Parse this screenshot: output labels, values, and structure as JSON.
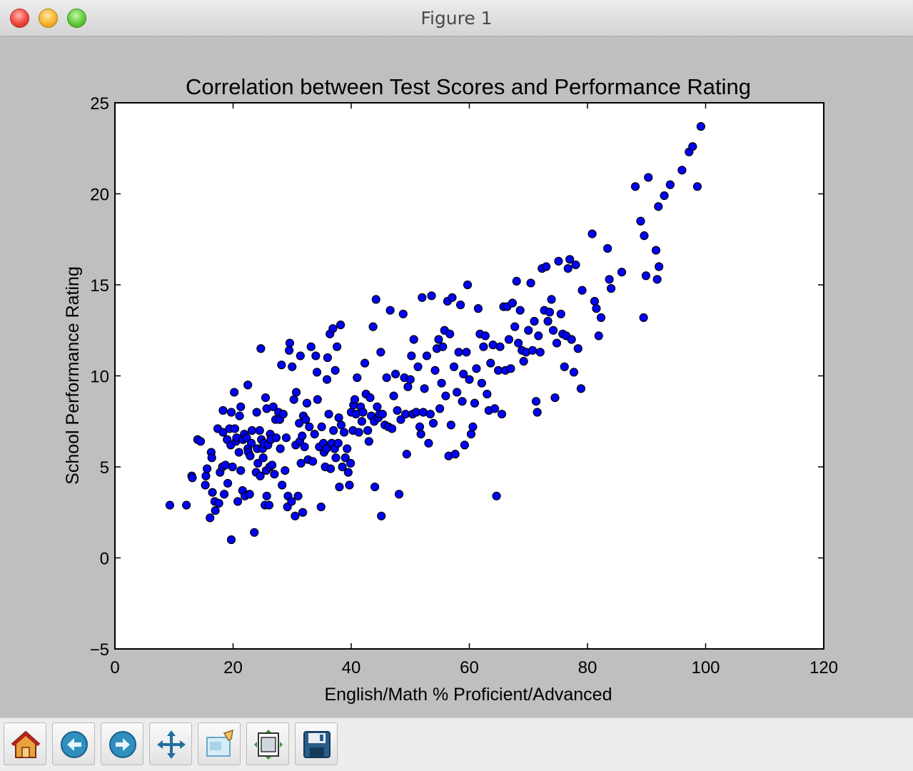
{
  "window": {
    "title": "Figure 1"
  },
  "toolbar": {
    "buttons": [
      {
        "name": "home-icon"
      },
      {
        "name": "back-arrow-icon"
      },
      {
        "name": "forward-arrow-icon"
      },
      {
        "name": "pan-move-icon"
      },
      {
        "name": "zoom-rect-icon"
      },
      {
        "name": "subplots-config-icon"
      },
      {
        "name": "save-floppy-icon"
      }
    ]
  },
  "chart_data": {
    "type": "scatter",
    "title": "Correlation between Test Scores and Performance Rating",
    "xlabel": "English/Math % Proficient/Advanced",
    "ylabel": "School Performance Rating",
    "xlim": [
      0,
      120
    ],
    "ylim": [
      -5,
      25
    ],
    "xticks": [
      "0",
      "20",
      "40",
      "60",
      "80",
      "100",
      "120"
    ],
    "yticks": [
      "−5",
      "0",
      "5",
      "10",
      "15",
      "20",
      "25"
    ],
    "grid": false,
    "marker_color": "#0000ff",
    "marker_edge": "#000000",
    "points": [
      [
        9.3,
        2.9
      ],
      [
        12.1,
        2.9
      ],
      [
        13.0,
        4.5
      ],
      [
        13.1,
        4.4
      ],
      [
        14.0,
        6.5
      ],
      [
        14.5,
        6.4
      ],
      [
        15.3,
        4.0
      ],
      [
        15.4,
        4.5
      ],
      [
        15.6,
        4.9
      ],
      [
        16.1,
        2.2
      ],
      [
        16.3,
        5.8
      ],
      [
        16.5,
        3.6
      ],
      [
        16.4,
        5.5
      ],
      [
        16.9,
        3.1
      ],
      [
        17.0,
        2.6
      ],
      [
        17.4,
        7.1
      ],
      [
        17.6,
        3.0
      ],
      [
        17.8,
        4.7
      ],
      [
        18.2,
        5.0
      ],
      [
        18.3,
        6.9
      ],
      [
        18.3,
        8.1
      ],
      [
        18.5,
        3.5
      ],
      [
        18.7,
        5.1
      ],
      [
        19.0,
        6.5
      ],
      [
        19.1,
        4.1
      ],
      [
        19.4,
        7.1
      ],
      [
        19.6,
        6.2
      ],
      [
        19.7,
        8.0
      ],
      [
        19.7,
        1.0
      ],
      [
        19.9,
        5.0
      ],
      [
        20.2,
        9.1
      ],
      [
        20.3,
        7.1
      ],
      [
        20.5,
        6.4
      ],
      [
        20.6,
        6.6
      ],
      [
        20.8,
        3.1
      ],
      [
        21.0,
        5.8
      ],
      [
        21.1,
        7.8
      ],
      [
        21.3,
        8.3
      ],
      [
        21.3,
        4.8
      ],
      [
        21.6,
        3.7
      ],
      [
        21.7,
        6.5
      ],
      [
        21.9,
        6.8
      ],
      [
        22.0,
        3.4
      ],
      [
        22.3,
        6.6
      ],
      [
        22.5,
        9.5
      ],
      [
        22.5,
        6.0
      ],
      [
        22.6,
        5.8
      ],
      [
        22.8,
        3.5
      ],
      [
        22.9,
        5.6
      ],
      [
        23.1,
        6.3
      ],
      [
        23.2,
        7.0
      ],
      [
        23.6,
        1.4
      ],
      [
        23.9,
        4.7
      ],
      [
        24.0,
        8.0
      ],
      [
        24.1,
        6.0
      ],
      [
        24.2,
        5.2
      ],
      [
        24.5,
        7.0
      ],
      [
        24.6,
        4.5
      ],
      [
        24.7,
        11.5
      ],
      [
        24.8,
        6.5
      ],
      [
        25.0,
        6.0
      ],
      [
        25.1,
        5.5
      ],
      [
        25.2,
        6.3
      ],
      [
        25.4,
        2.9
      ],
      [
        25.5,
        8.8
      ],
      [
        25.6,
        4.8
      ],
      [
        25.7,
        3.4
      ],
      [
        25.7,
        8.2
      ],
      [
        25.9,
        6.2
      ],
      [
        26.1,
        2.9
      ],
      [
        26.2,
        5.0
      ],
      [
        26.3,
        6.8
      ],
      [
        26.4,
        6.5
      ],
      [
        26.6,
        5.1
      ],
      [
        26.8,
        8.3
      ],
      [
        27.0,
        4.6
      ],
      [
        27.2,
        7.6
      ],
      [
        27.3,
        6.6
      ],
      [
        27.7,
        8.0
      ],
      [
        27.9,
        7.6
      ],
      [
        28.0,
        6.0
      ],
      [
        28.2,
        10.6
      ],
      [
        28.3,
        4.0
      ],
      [
        28.5,
        7.9
      ],
      [
        28.8,
        4.8
      ],
      [
        29.0,
        6.6
      ],
      [
        29.2,
        2.8
      ],
      [
        29.3,
        3.4
      ],
      [
        29.5,
        11.4
      ],
      [
        29.6,
        11.8
      ],
      [
        29.9,
        3.1
      ],
      [
        30.0,
        10.5
      ],
      [
        30.3,
        8.7
      ],
      [
        30.5,
        2.3
      ],
      [
        30.6,
        6.2
      ],
      [
        30.7,
        9.1
      ],
      [
        31.0,
        3.4
      ],
      [
        31.2,
        7.4
      ],
      [
        31.3,
        6.4
      ],
      [
        31.4,
        11.1
      ],
      [
        31.5,
        5.2
      ],
      [
        31.7,
        6.7
      ],
      [
        31.8,
        2.5
      ],
      [
        31.9,
        7.8
      ],
      [
        32.1,
        6.1
      ],
      [
        32.3,
        7.6
      ],
      [
        32.5,
        8.5
      ],
      [
        32.7,
        5.4
      ],
      [
        32.9,
        7.2
      ],
      [
        33.2,
        11.6
      ],
      [
        33.5,
        5.3
      ],
      [
        33.8,
        6.8
      ],
      [
        34.0,
        11.1
      ],
      [
        34.2,
        10.2
      ],
      [
        34.3,
        8.7
      ],
      [
        34.6,
        6.1
      ],
      [
        34.9,
        2.8
      ],
      [
        35.0,
        7.2
      ],
      [
        35.3,
        6.3
      ],
      [
        35.4,
        5.8
      ],
      [
        35.6,
        5.0
      ],
      [
        35.8,
        6.0
      ],
      [
        35.9,
        9.8
      ],
      [
        36.0,
        11.0
      ],
      [
        36.2,
        7.9
      ],
      [
        36.4,
        12.3
      ],
      [
        36.5,
        4.9
      ],
      [
        36.7,
        6.3
      ],
      [
        36.9,
        12.6
      ],
      [
        37.0,
        7.0
      ],
      [
        37.2,
        6.0
      ],
      [
        37.3,
        10.3
      ],
      [
        37.4,
        5.5
      ],
      [
        37.6,
        11.6
      ],
      [
        37.8,
        6.3
      ],
      [
        37.9,
        7.7
      ],
      [
        38.0,
        3.9
      ],
      [
        38.2,
        12.8
      ],
      [
        38.3,
        7.3
      ],
      [
        38.5,
        5.0
      ],
      [
        38.8,
        6.9
      ],
      [
        39.0,
        5.5
      ],
      [
        39.3,
        6.0
      ],
      [
        39.5,
        4.7
      ],
      [
        39.7,
        4.0
      ],
      [
        39.9,
        5.2
      ],
      [
        40.0,
        8.0
      ],
      [
        40.3,
        7.0
      ],
      [
        40.4,
        8.4
      ],
      [
        40.6,
        8.7
      ],
      [
        40.8,
        7.9
      ],
      [
        41.0,
        9.9
      ],
      [
        41.3,
        6.9
      ],
      [
        41.6,
        8.3
      ],
      [
        41.8,
        7.5
      ],
      [
        42.0,
        8.0
      ],
      [
        42.3,
        10.7
      ],
      [
        42.5,
        9.0
      ],
      [
        42.8,
        7.0
      ],
      [
        43.0,
        6.4
      ],
      [
        43.2,
        8.8
      ],
      [
        43.4,
        7.8
      ],
      [
        43.7,
        12.7
      ],
      [
        43.9,
        7.5
      ],
      [
        44.0,
        3.9
      ],
      [
        44.2,
        14.2
      ],
      [
        44.4,
        8.3
      ],
      [
        44.6,
        7.7
      ],
      [
        44.8,
        7.9
      ],
      [
        45.0,
        11.3
      ],
      [
        45.1,
        2.3
      ],
      [
        45.3,
        7.9
      ],
      [
        45.7,
        7.3
      ],
      [
        46.0,
        9.9
      ],
      [
        46.3,
        7.2
      ],
      [
        46.6,
        13.6
      ],
      [
        46.9,
        7.1
      ],
      [
        47.2,
        8.9
      ],
      [
        47.5,
        10.1
      ],
      [
        47.8,
        8.1
      ],
      [
        48.1,
        3.5
      ],
      [
        48.4,
        7.6
      ],
      [
        48.8,
        13.4
      ],
      [
        49.0,
        9.9
      ],
      [
        49.2,
        7.9
      ],
      [
        49.4,
        5.7
      ],
      [
        49.6,
        9.4
      ],
      [
        50.0,
        9.8
      ],
      [
        50.2,
        11.1
      ],
      [
        50.4,
        7.9
      ],
      [
        50.6,
        12.0
      ],
      [
        51.0,
        8.0
      ],
      [
        51.3,
        10.5
      ],
      [
        51.6,
        7.2
      ],
      [
        51.8,
        6.8
      ],
      [
        52.0,
        14.3
      ],
      [
        52.2,
        8.0
      ],
      [
        52.4,
        9.3
      ],
      [
        52.8,
        11.1
      ],
      [
        53.1,
        6.3
      ],
      [
        53.4,
        7.9
      ],
      [
        53.6,
        14.4
      ],
      [
        53.9,
        7.4
      ],
      [
        54.2,
        10.3
      ],
      [
        54.5,
        11.5
      ],
      [
        54.8,
        12.0
      ],
      [
        55.0,
        8.2
      ],
      [
        55.3,
        9.6
      ],
      [
        55.5,
        11.6
      ],
      [
        55.8,
        12.5
      ],
      [
        56.0,
        8.9
      ],
      [
        56.3,
        14.1
      ],
      [
        56.5,
        5.6
      ],
      [
        56.7,
        12.3
      ],
      [
        56.9,
        7.3
      ],
      [
        57.1,
        14.3
      ],
      [
        57.4,
        10.5
      ],
      [
        57.6,
        5.7
      ],
      [
        57.9,
        9.1
      ],
      [
        58.2,
        11.3
      ],
      [
        58.5,
        13.9
      ],
      [
        58.8,
        8.6
      ],
      [
        59.0,
        10.1
      ],
      [
        59.2,
        6.2
      ],
      [
        59.5,
        11.3
      ],
      [
        59.7,
        15.0
      ],
      [
        60.0,
        9.8
      ],
      [
        60.3,
        6.8
      ],
      [
        60.6,
        7.2
      ],
      [
        60.9,
        8.5
      ],
      [
        61.2,
        10.4
      ],
      [
        61.5,
        13.7
      ],
      [
        61.8,
        12.3
      ],
      [
        62.1,
        9.6
      ],
      [
        62.4,
        11.6
      ],
      [
        62.7,
        12.2
      ],
      [
        63.0,
        9.0
      ],
      [
        63.3,
        8.1
      ],
      [
        63.6,
        10.7
      ],
      [
        64.0,
        11.7
      ],
      [
        64.3,
        8.2
      ],
      [
        64.6,
        3.4
      ],
      [
        64.9,
        10.3
      ],
      [
        65.2,
        11.6
      ],
      [
        65.5,
        7.9
      ],
      [
        65.8,
        13.8
      ],
      [
        66.1,
        10.3
      ],
      [
        66.4,
        13.8
      ],
      [
        66.7,
        12.0
      ],
      [
        67.0,
        10.4
      ],
      [
        67.3,
        14.0
      ],
      [
        67.7,
        12.7
      ],
      [
        68.0,
        15.2
      ],
      [
        68.3,
        11.8
      ],
      [
        68.6,
        13.6
      ],
      [
        68.9,
        11.4
      ],
      [
        69.2,
        10.8
      ],
      [
        69.6,
        11.3
      ],
      [
        70.0,
        12.5
      ],
      [
        70.4,
        15.1
      ],
      [
        70.7,
        11.4
      ],
      [
        71.0,
        13.0
      ],
      [
        71.3,
        8.6
      ],
      [
        71.5,
        8.0
      ],
      [
        71.7,
        12.2
      ],
      [
        72.0,
        11.3
      ],
      [
        72.3,
        15.9
      ],
      [
        72.7,
        13.6
      ],
      [
        73.0,
        16.0
      ],
      [
        73.3,
        13.0
      ],
      [
        73.6,
        13.5
      ],
      [
        73.9,
        14.2
      ],
      [
        74.2,
        12.5
      ],
      [
        74.5,
        8.8
      ],
      [
        74.8,
        11.8
      ],
      [
        75.1,
        16.3
      ],
      [
        75.5,
        13.4
      ],
      [
        75.8,
        12.3
      ],
      [
        76.1,
        10.5
      ],
      [
        76.4,
        12.2
      ],
      [
        76.7,
        15.9
      ],
      [
        77.0,
        16.4
      ],
      [
        77.3,
        12.0
      ],
      [
        77.7,
        10.2
      ],
      [
        78.0,
        16.1
      ],
      [
        78.4,
        11.5
      ],
      [
        78.9,
        9.3
      ],
      [
        79.1,
        14.7
      ],
      [
        80.8,
        17.8
      ],
      [
        81.2,
        14.1
      ],
      [
        81.5,
        13.7
      ],
      [
        81.9,
        12.2
      ],
      [
        82.3,
        13.2
      ],
      [
        83.4,
        17.0
      ],
      [
        83.7,
        15.3
      ],
      [
        84.0,
        14.8
      ],
      [
        85.8,
        15.7
      ],
      [
        88.1,
        20.4
      ],
      [
        89.0,
        18.5
      ],
      [
        89.5,
        13.2
      ],
      [
        89.6,
        17.7
      ],
      [
        89.9,
        15.5
      ],
      [
        90.3,
        20.9
      ],
      [
        91.6,
        16.9
      ],
      [
        91.8,
        15.3
      ],
      [
        92.1,
        16.0
      ],
      [
        92.0,
        19.3
      ],
      [
        93.0,
        19.9
      ],
      [
        94.0,
        20.5
      ],
      [
        96.0,
        21.3
      ],
      [
        97.2,
        22.3
      ],
      [
        97.8,
        22.6
      ],
      [
        98.6,
        20.4
      ],
      [
        99.2,
        23.7
      ]
    ]
  }
}
